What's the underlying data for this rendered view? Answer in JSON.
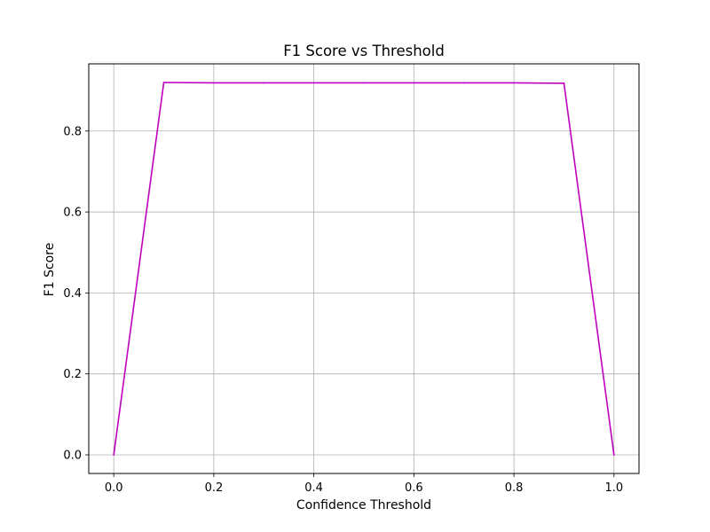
{
  "chart_data": {
    "type": "line",
    "title": "F1 Score vs Threshold",
    "xlabel": "Confidence Threshold",
    "ylabel": "F1 Score",
    "xlim": [
      -0.05,
      1.05
    ],
    "ylim": [
      -0.046,
      0.966
    ],
    "xticks": [
      0.0,
      0.2,
      0.4,
      0.6,
      0.8,
      1.0
    ],
    "xtick_labels": [
      "0.0",
      "0.2",
      "0.4",
      "0.6",
      "0.8",
      "1.0"
    ],
    "yticks": [
      0.0,
      0.2,
      0.4,
      0.6,
      0.8
    ],
    "ytick_labels": [
      "0.0",
      "0.2",
      "0.4",
      "0.6",
      "0.8"
    ],
    "grid": true,
    "series": [
      {
        "color": "#bf00bf",
        "x": [
          0.0,
          0.1,
          0.2,
          0.3,
          0.4,
          0.5,
          0.6,
          0.7,
          0.8,
          0.9,
          1.0
        ],
        "y": [
          0.0,
          0.92,
          0.919,
          0.919,
          0.919,
          0.919,
          0.919,
          0.919,
          0.919,
          0.918,
          0.0
        ]
      }
    ]
  }
}
